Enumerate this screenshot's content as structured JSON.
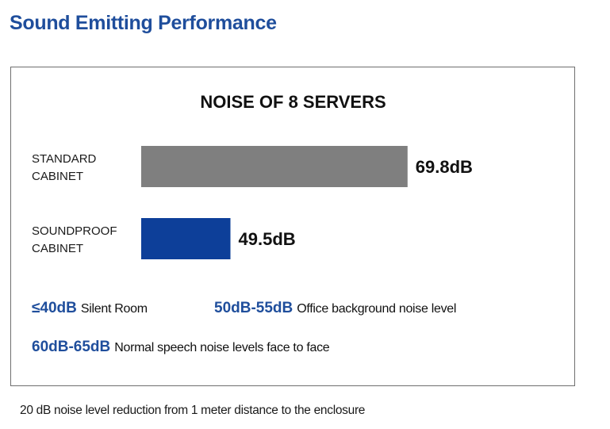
{
  "page": {
    "title": "Sound Emitting Performance",
    "footnote": "20 dB noise level reduction from 1 meter distance to the enclosure"
  },
  "chart_data": {
    "type": "bar",
    "orientation": "horizontal",
    "title": "NOISE OF 8 SERVERS",
    "categories": [
      "STANDARD CABINET",
      "SOUNDPROOF CABINET"
    ],
    "category_lines": [
      [
        "STANDARD",
        "CABINET"
      ],
      [
        "SOUNDPROOF",
        "CABINET"
      ]
    ],
    "values": [
      69.8,
      49.5
    ],
    "value_labels": [
      "69.8dB",
      "49.5dB"
    ],
    "unit": "dB",
    "bar_colors": [
      "#7f7f7f",
      "#0d3f99"
    ],
    "axis_visible": false,
    "grid": false,
    "xlim": [
      40,
      70
    ]
  },
  "legend": {
    "items": [
      {
        "level": "≤40dB",
        "desc": "Silent Room"
      },
      {
        "level": "50dB-55dB",
        "desc": "Office background noise level"
      },
      {
        "level": "60dB-65dB",
        "desc": "Normal speech noise levels face to face"
      }
    ],
    "level_color": "#1f4e9c"
  }
}
